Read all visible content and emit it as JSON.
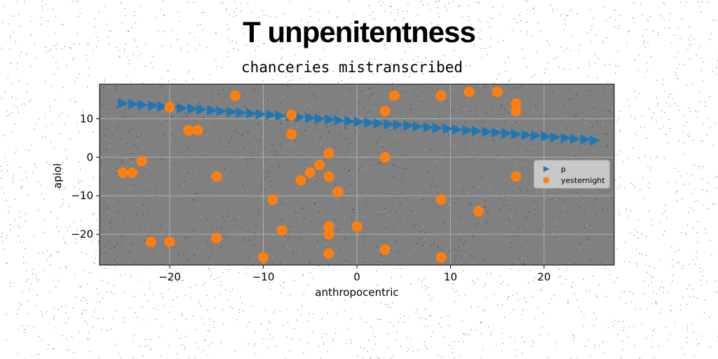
{
  "chart_data": {
    "type": "scatter",
    "title": "T unpenitentness",
    "subtitle": "chanceries mistranscribed",
    "xlabel": "anthropocentric",
    "ylabel": "apiol",
    "xlim": [
      -27.5,
      27.5
    ],
    "ylim": [
      -28,
      19
    ],
    "xticks": [
      -20,
      -10,
      0,
      10,
      20
    ],
    "yticks": [
      -20,
      -10,
      0,
      10
    ],
    "xtick_labels": [
      "−20",
      "−10",
      "0",
      "10",
      "20"
    ],
    "ytick_labels": [
      "−20",
      "−10",
      "0",
      "10"
    ],
    "grid": true,
    "legend_position": "center-right",
    "background": "#808080",
    "series": [
      {
        "name": "p",
        "marker": "triangle-right",
        "color": "#1f77b4",
        "x": [
          -25.0,
          -23.9,
          -22.9,
          -21.8,
          -20.8,
          -19.7,
          -18.7,
          -17.6,
          -16.6,
          -15.5,
          -14.5,
          -13.4,
          -12.4,
          -11.3,
          -10.3,
          -9.2,
          -8.2,
          -7.1,
          -6.1,
          -5.0,
          -4.0,
          -2.9,
          -1.9,
          -0.8,
          0.2,
          1.3,
          2.3,
          3.4,
          4.4,
          5.5,
          6.5,
          7.6,
          8.6,
          9.7,
          10.7,
          11.8,
          12.8,
          13.9,
          14.9,
          16.0,
          17.0,
          18.1,
          19.1,
          20.2,
          21.2,
          22.3,
          23.3,
          24.4,
          25.4
        ],
        "y": [
          14.0,
          13.8,
          13.6,
          13.4,
          13.2,
          13.0,
          12.8,
          12.6,
          12.4,
          12.2,
          12.0,
          11.8,
          11.6,
          11.4,
          11.2,
          11.0,
          10.8,
          10.6,
          10.4,
          10.2,
          10.0,
          9.8,
          9.6,
          9.4,
          9.2,
          9.0,
          8.8,
          8.6,
          8.4,
          8.2,
          8.0,
          7.8,
          7.6,
          7.4,
          7.2,
          7.0,
          6.8,
          6.6,
          6.4,
          6.2,
          6.0,
          5.8,
          5.6,
          5.4,
          5.2,
          5.0,
          4.8,
          4.6,
          4.4
        ]
      },
      {
        "name": "yesternight",
        "marker": "circle",
        "color": "#ff7f0e",
        "x": [
          -25,
          -24,
          -23,
          -22,
          -20,
          -20,
          -18,
          -17,
          -15,
          -15,
          -13,
          -10,
          -9,
          -8,
          -7,
          -7,
          -6,
          -5,
          -4,
          -3,
          -3,
          -3,
          -3,
          -3,
          -2,
          0,
          3,
          3,
          3,
          4,
          9,
          9,
          9,
          12,
          13,
          15,
          17,
          17,
          17
        ],
        "y": [
          -4,
          -4,
          -1,
          -22,
          13,
          -22,
          7,
          7,
          -5,
          -21,
          16,
          -26,
          -11,
          -19,
          11,
          6,
          -6,
          -4,
          -2,
          1,
          -5,
          -18,
          -20,
          -25,
          -9,
          -18,
          12,
          0,
          -24,
          16,
          16,
          -11,
          -26,
          17,
          -14,
          17,
          14,
          12,
          -5
        ]
      }
    ]
  }
}
